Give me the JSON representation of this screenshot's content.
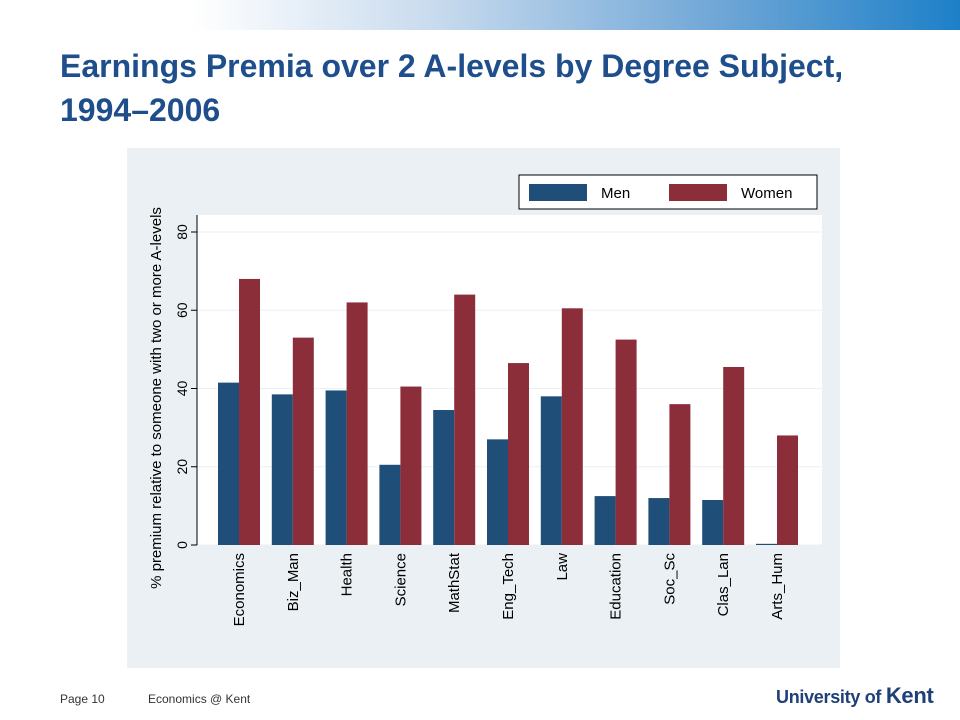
{
  "slide": {
    "title": "Earnings Premia over 2 A-levels by Degree Subject, 1994–2006"
  },
  "footer": {
    "page": "Page 10",
    "department": "Economics @ Kent"
  },
  "logo": {
    "prefix": "University of ",
    "name": "Kent"
  },
  "colors": {
    "men": "#1f4e79",
    "women": "#8b2e3a",
    "title": "#1f4e8c",
    "panel_bg": "#eaf0f3",
    "plot_bg": "#ffffff"
  },
  "chart_data": {
    "type": "bar",
    "title": "",
    "xlabel": "",
    "ylabel": "% premium relative to someone with two or more A-levels",
    "ylim": [
      0,
      80
    ],
    "yticks": [
      0,
      20,
      40,
      60,
      80
    ],
    "grid": true,
    "legend_position": "top-right",
    "categories": [
      "Economics",
      "Biz_Man",
      "Health",
      "Science",
      "MathStat",
      "Eng_Tech",
      "Law",
      "Education",
      "Soc_Sc",
      "Clas_Lan",
      "Arts_Hum"
    ],
    "series": [
      {
        "name": "Men",
        "color": "#1f4e79",
        "values": [
          41.5,
          38.5,
          39.5,
          20.5,
          34.5,
          27,
          38,
          12.5,
          12,
          11.5,
          0.3
        ]
      },
      {
        "name": "Women",
        "color": "#8b2e3a",
        "values": [
          68,
          53,
          62,
          40.5,
          64,
          46.5,
          60.5,
          52.5,
          36,
          45.5,
          28
        ]
      }
    ]
  }
}
